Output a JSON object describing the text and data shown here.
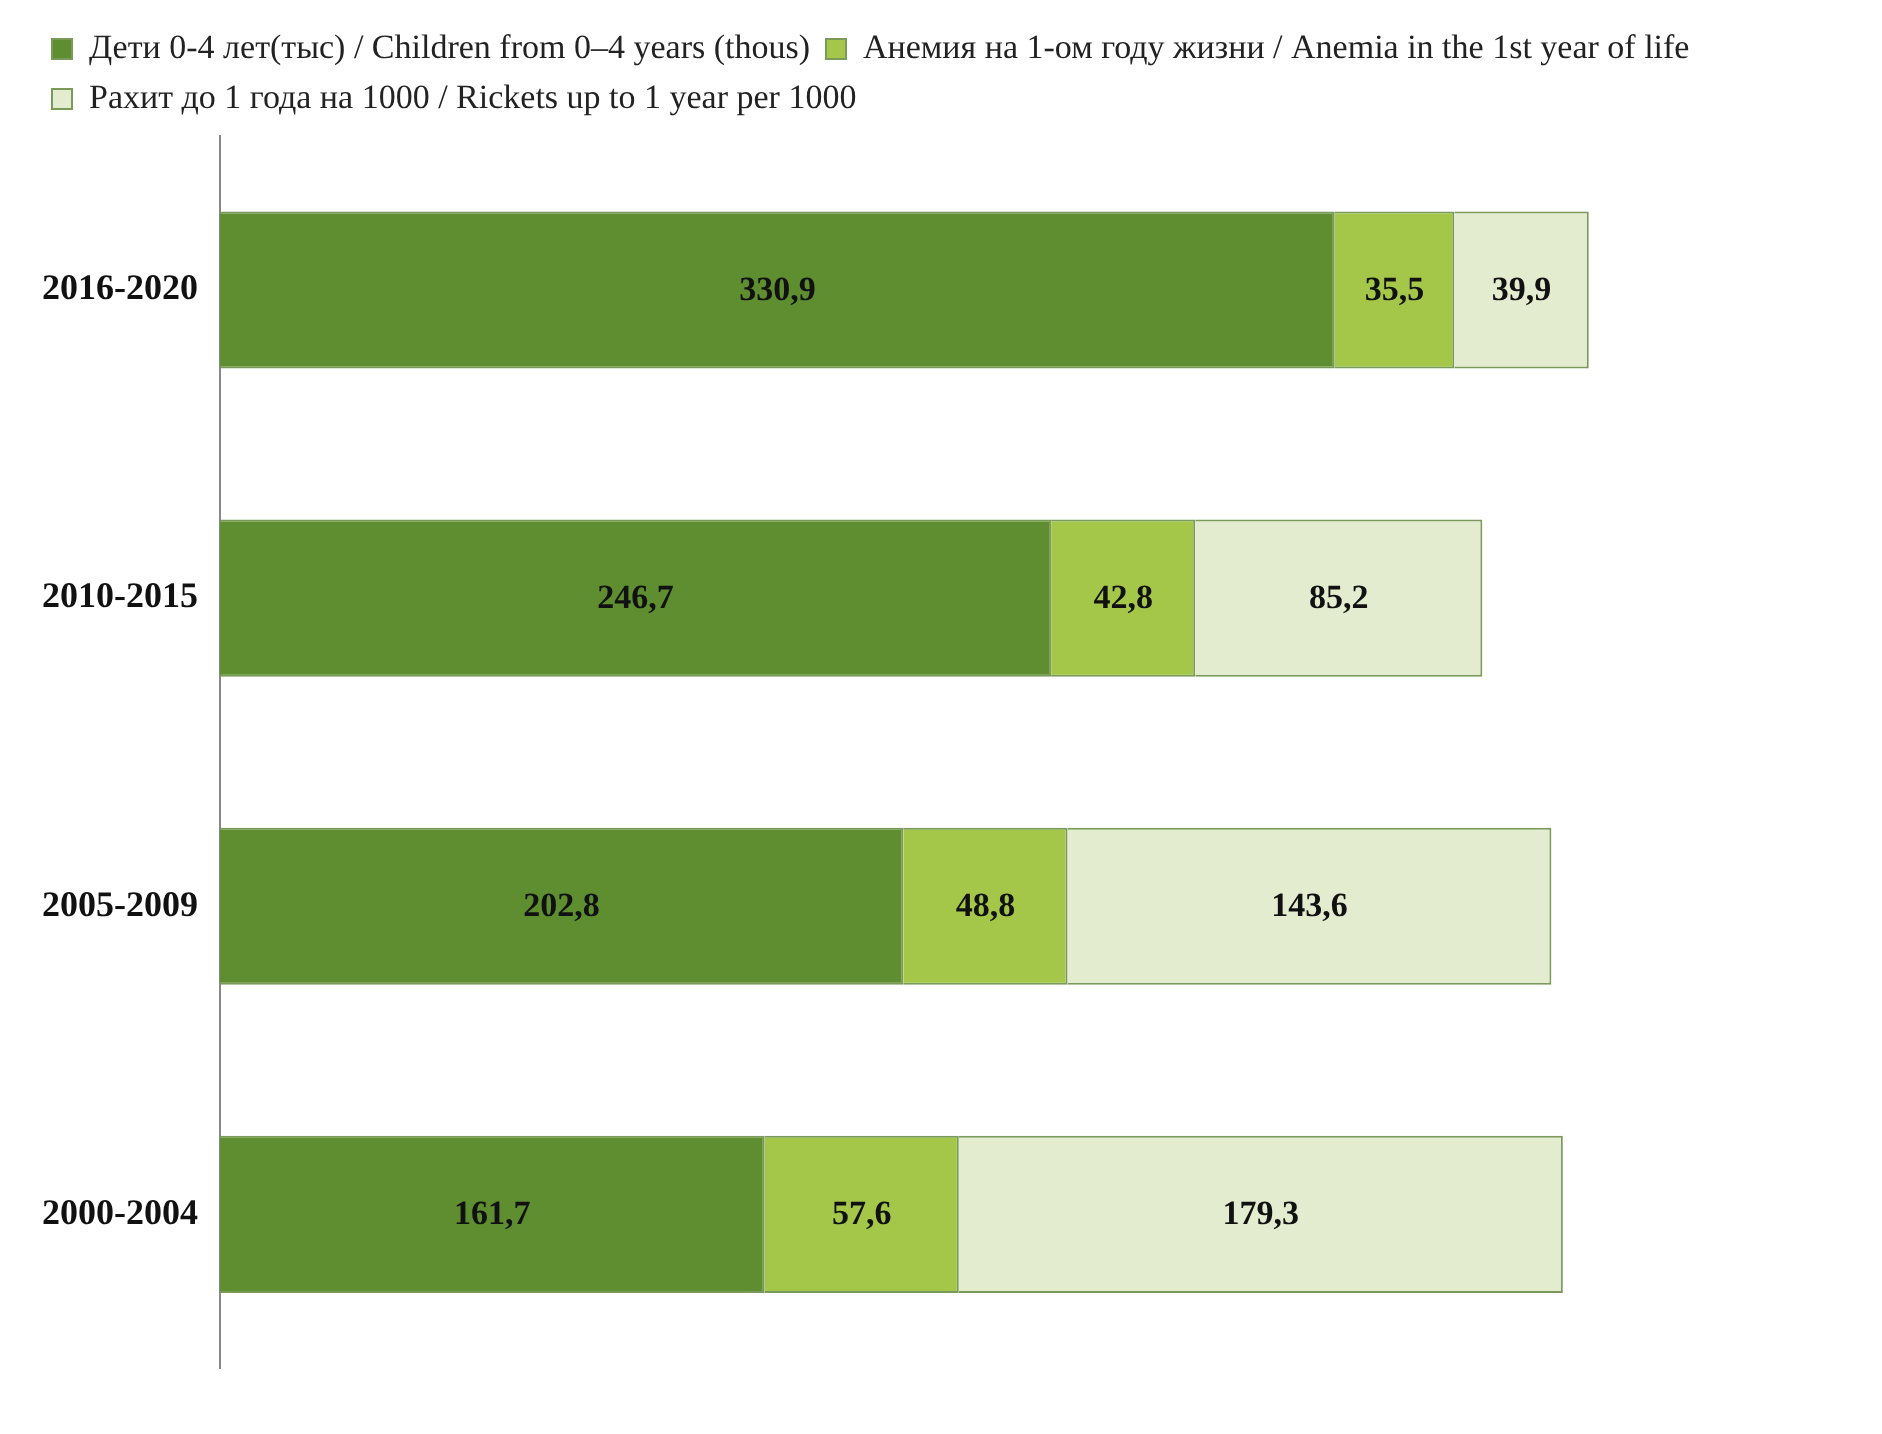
{
  "chart_data": {
    "type": "bar",
    "orientation": "horizontal",
    "stacked": true,
    "categories": [
      "2016-2020",
      "2010-2015",
      "2005-2009",
      "2000-2004"
    ],
    "series": [
      {
        "name": "Дети 0-4 лет(тыс) / Children from 0–4 years (thous)",
        "color": "#5e8e2f",
        "values": [
          330.9,
          246.7,
          202.8,
          161.7
        ],
        "value_labels": [
          "330,9",
          "246,7",
          "202,8",
          "161,7"
        ]
      },
      {
        "name": "Анемия на 1-ом году жизни / Anemia in the 1st year of life",
        "color": "#a4c74a",
        "values": [
          35.5,
          42.8,
          48.8,
          57.6
        ],
        "value_labels": [
          "35,5",
          "42,8",
          "48,8",
          "57,6"
        ]
      },
      {
        "name": "Рахит до 1 года на 1000 / Rickets up to 1 year per 1000",
        "color": "#e4ecd0",
        "values": [
          39.9,
          85.2,
          143.6,
          179.3
        ],
        "value_labels": [
          "39,9",
          "85,2",
          "143,6",
          "179,3"
        ]
      }
    ],
    "legend": "top left",
    "grid": false,
    "tick_labels": "y"
  }
}
